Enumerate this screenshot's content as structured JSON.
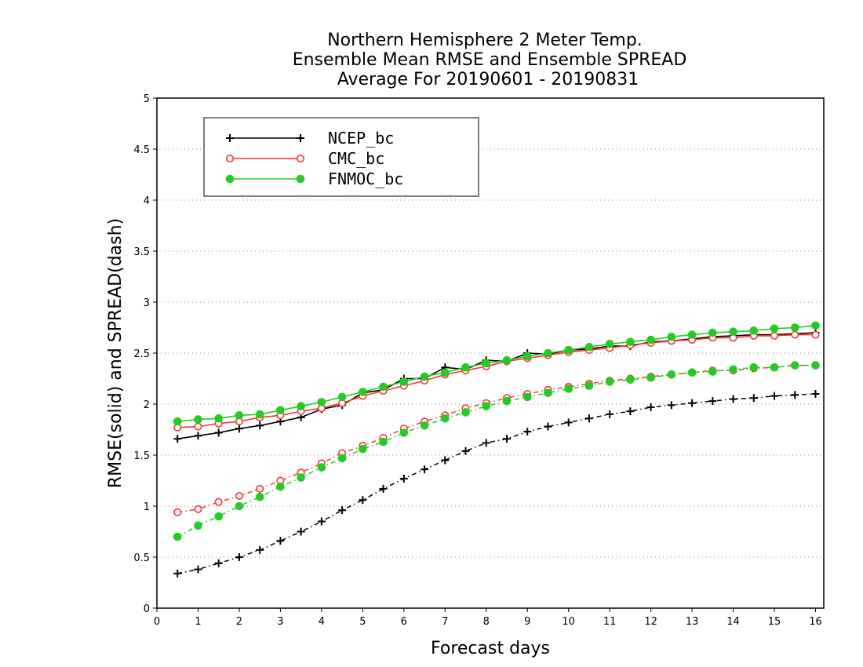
{
  "chart_data": {
    "type": "line",
    "title_lines": [
      "Northern Hemisphere 2 Meter Temp.",
      "Ensemble Mean RMSE and Ensemble SPREAD",
      "Average For 20190601 - 20190831"
    ],
    "xlabel": "Forecast days",
    "ylabel": "RMSE(solid) and SPREAD(dash)",
    "xlim": [
      0,
      16.2
    ],
    "ylim": [
      0,
      5
    ],
    "x_ticks": [
      0,
      1,
      2,
      3,
      4,
      5,
      6,
      7,
      8,
      9,
      10,
      11,
      12,
      13,
      14,
      15,
      16
    ],
    "y_ticks": [
      0,
      0.5,
      1,
      1.5,
      2,
      2.5,
      3,
      3.5,
      4,
      4.5,
      5
    ],
    "y_tick_labels": [
      "0",
      "0.5",
      "1",
      "1.5",
      "2",
      "2.5",
      "3",
      "3.5",
      "4",
      "4.5",
      "5"
    ],
    "grid": "horizontal dotted",
    "legend_position": "top-left",
    "x": [
      0.5,
      1,
      1.5,
      2,
      2.5,
      3,
      3.5,
      4,
      4.5,
      5,
      5.5,
      6,
      6.5,
      7,
      7.5,
      8,
      8.5,
      9,
      9.5,
      10,
      10.5,
      11,
      11.5,
      12,
      12.5,
      13,
      13.5,
      14,
      14.5,
      15,
      15.5,
      16
    ],
    "series": [
      {
        "name": "NCEP_bc",
        "color": "#000000",
        "marker": "plus",
        "rmse": [
          1.66,
          1.69,
          1.72,
          1.76,
          1.79,
          1.83,
          1.87,
          1.95,
          1.99,
          2.11,
          2.14,
          2.25,
          2.25,
          2.36,
          2.34,
          2.43,
          2.42,
          2.5,
          2.49,
          2.53,
          2.54,
          2.57,
          2.57,
          2.61,
          2.62,
          2.64,
          2.66,
          2.67,
          2.68,
          2.68,
          2.69,
          2.7
        ],
        "spread": [
          0.34,
          0.38,
          0.44,
          0.5,
          0.57,
          0.66,
          0.75,
          0.85,
          0.96,
          1.06,
          1.17,
          1.27,
          1.36,
          1.45,
          1.54,
          1.62,
          1.66,
          1.73,
          1.78,
          1.82,
          1.86,
          1.9,
          1.93,
          1.97,
          1.99,
          2.01,
          2.03,
          2.05,
          2.06,
          2.08,
          2.09,
          2.1
        ]
      },
      {
        "name": "CMC_bc",
        "color": "#ff3333",
        "marker": "open-circle",
        "rmse": [
          1.77,
          1.78,
          1.81,
          1.83,
          1.87,
          1.89,
          1.93,
          1.96,
          2.01,
          2.08,
          2.13,
          2.18,
          2.23,
          2.29,
          2.33,
          2.37,
          2.42,
          2.45,
          2.48,
          2.51,
          2.53,
          2.55,
          2.58,
          2.6,
          2.62,
          2.63,
          2.65,
          2.65,
          2.67,
          2.67,
          2.68,
          2.68
        ],
        "spread": [
          0.94,
          0.97,
          1.04,
          1.1,
          1.17,
          1.25,
          1.33,
          1.42,
          1.52,
          1.59,
          1.67,
          1.76,
          1.83,
          1.89,
          1.96,
          2.01,
          2.06,
          2.1,
          2.14,
          2.17,
          2.2,
          2.23,
          2.25,
          2.27,
          2.29,
          2.31,
          2.33,
          2.33,
          2.35,
          2.36,
          2.38,
          2.38
        ]
      },
      {
        "name": "FNMOC_bc",
        "color": "#22cc22",
        "marker": "filled-circle",
        "rmse": [
          1.83,
          1.85,
          1.86,
          1.89,
          1.9,
          1.94,
          1.98,
          2.02,
          2.07,
          2.12,
          2.17,
          2.22,
          2.27,
          2.31,
          2.36,
          2.4,
          2.43,
          2.47,
          2.5,
          2.53,
          2.56,
          2.59,
          2.61,
          2.63,
          2.66,
          2.68,
          2.7,
          2.71,
          2.72,
          2.74,
          2.75,
          2.77
        ],
        "spread": [
          0.7,
          0.81,
          0.9,
          1.0,
          1.09,
          1.19,
          1.28,
          1.38,
          1.47,
          1.56,
          1.63,
          1.72,
          1.79,
          1.86,
          1.92,
          1.98,
          2.03,
          2.07,
          2.11,
          2.15,
          2.18,
          2.22,
          2.24,
          2.26,
          2.29,
          2.31,
          2.32,
          2.34,
          2.36,
          2.36,
          2.38,
          2.38
        ]
      }
    ]
  }
}
